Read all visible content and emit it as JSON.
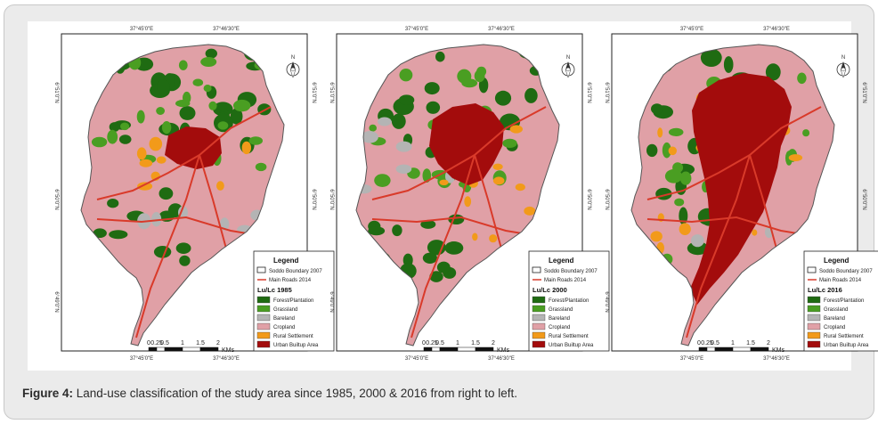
{
  "figure": {
    "caption_label": "Figure 4:",
    "caption_text": " Land-use classification of the study area since 1985, 2000 & 2016 from right to left."
  },
  "colors": {
    "forest": "#1f6b12",
    "grassland": "#4a9e22",
    "bareland": "#b4b4b4",
    "cropland": "#e0a0a6",
    "rural": "#f29a1a",
    "urban": "#a30c0c",
    "roads": "#d93a2a",
    "boundary": "#555555"
  },
  "maps": [
    {
      "top_left_tick": "37°45'0\"E",
      "top_right_tick": "37°46'30\"E",
      "bottom_left_tick": "37°45'0\"E",
      "bottom_right_tick": "37°46'30\"E",
      "lat_ticks": [
        "6°51'0\"N",
        "6°50'0\"N",
        "6°49'0\"N"
      ],
      "legend_title": "Legend",
      "boundary_label": "Soddo Boundary 2007",
      "roads_label": "Main Roads 2014",
      "year_title": "Lu/Lc 1985",
      "classes": [
        "Forest/Plantation",
        "Grassland",
        "Bareland",
        "Cropland",
        "Rural Settlement",
        "Urban Builtup Area"
      ],
      "scale_labels": [
        "0",
        "0.25",
        "0.5",
        "1",
        "1.5",
        "2"
      ],
      "scale_unit": "KMs",
      "north_label": "N"
    },
    {
      "top_left_tick": "37°45'0\"E",
      "top_right_tick": "37°46'30\"E",
      "bottom_left_tick": "37°45'0\"E",
      "bottom_right_tick": "37°46'30\"E",
      "lat_ticks": [
        "6°51'0\"N",
        "6°50'0\"N",
        "6°49'0\"N"
      ],
      "legend_title": "Legend",
      "boundary_label": "Soddo Boundary 2007",
      "roads_label": "Main Roads 2014",
      "year_title": "Lu/Lc 2000",
      "classes": [
        "Forest/Plantation",
        "Grassland",
        "Bareland",
        "Cropland",
        "Rural Settlement",
        "Urban Builtup Area"
      ],
      "scale_labels": [
        "0",
        "0.25",
        "0.5",
        "1",
        "1.5",
        "2"
      ],
      "scale_unit": "KMs",
      "north_label": "N"
    },
    {
      "top_left_tick": "37°45'0\"E",
      "top_right_tick": "37°46'30\"E",
      "bottom_left_tick": "37°45'0\"E",
      "bottom_right_tick": "37°46'30\"E",
      "lat_ticks": [
        "6°51'0\"N",
        "6°50'0\"N",
        "6°49'0\"N"
      ],
      "legend_title": "Legend",
      "boundary_label": "Soddo Boundary 2007",
      "roads_label": "Main Roads 2014",
      "year_title": "Lu/Lc 2016",
      "classes": [
        "Forest/Plantation",
        "Grassland",
        "Bareland",
        "Cropland",
        "Rural Settlement",
        "Urban Builtup Area"
      ],
      "scale_labels": [
        "0",
        "0.25",
        "0.5",
        "1",
        "1.5",
        "2"
      ],
      "scale_unit": "KMs",
      "north_label": "N"
    }
  ]
}
